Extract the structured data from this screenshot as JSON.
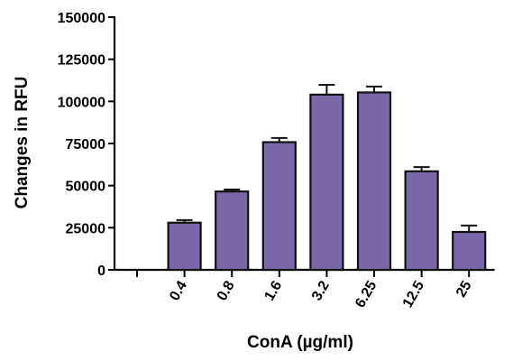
{
  "chart_data": {
    "type": "bar",
    "categories": [
      "",
      "0.4",
      "0.8",
      "1.6",
      "3.2",
      "6.25",
      "12.5",
      "25"
    ],
    "values": [
      0,
      28000,
      46500,
      75800,
      104000,
      105300,
      58500,
      22500
    ],
    "errors": [
      0,
      1500,
      1200,
      2500,
      5800,
      3500,
      2500,
      3800
    ],
    "xlabel": "ConA (µg/ml)",
    "ylabel": "Changes in RFU",
    "ylim": [
      0,
      150000
    ],
    "yticks": [
      0,
      25000,
      50000,
      75000,
      100000,
      125000,
      150000
    ],
    "bar_color": "#7b68a8",
    "grid": false
  }
}
